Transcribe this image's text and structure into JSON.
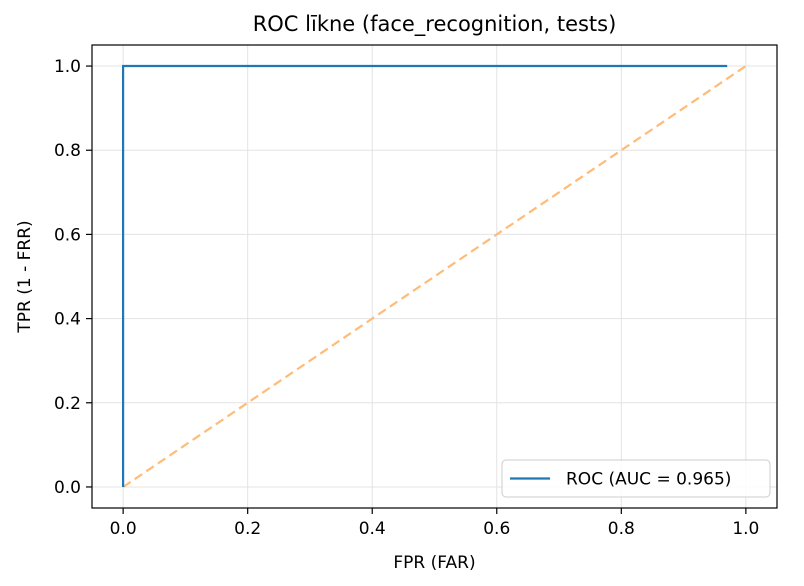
{
  "chart_data": {
    "type": "line",
    "title": "ROC līkne (face_recognition, tests)",
    "xlabel": "FPR (FAR)",
    "ylabel": "TPR (1 - FRR)",
    "xlim": [
      -0.05,
      1.05
    ],
    "ylim": [
      -0.05,
      1.05
    ],
    "xticks": [
      0.0,
      0.2,
      0.4,
      0.6,
      0.8,
      1.0
    ],
    "yticks": [
      0.0,
      0.2,
      0.4,
      0.6,
      0.8,
      1.0
    ],
    "xtick_labels": [
      "0.0",
      "0.2",
      "0.4",
      "0.6",
      "0.8",
      "1.0"
    ],
    "ytick_labels": [
      "0.0",
      "0.2",
      "0.4",
      "0.6",
      "0.8",
      "1.0"
    ],
    "grid": true,
    "legend_position": "lower-right",
    "series": [
      {
        "name": "ROC (AUC = 0.965)",
        "color": "#1f77b4",
        "style": "solid",
        "x": [
          0.0,
          0.0,
          0.97
        ],
        "y": [
          0.0,
          1.0,
          1.0
        ]
      },
      {
        "color": "#ffbb78",
        "style": "dashed",
        "x": [
          0.0,
          1.0
        ],
        "y": [
          0.0,
          1.0
        ]
      }
    ]
  }
}
